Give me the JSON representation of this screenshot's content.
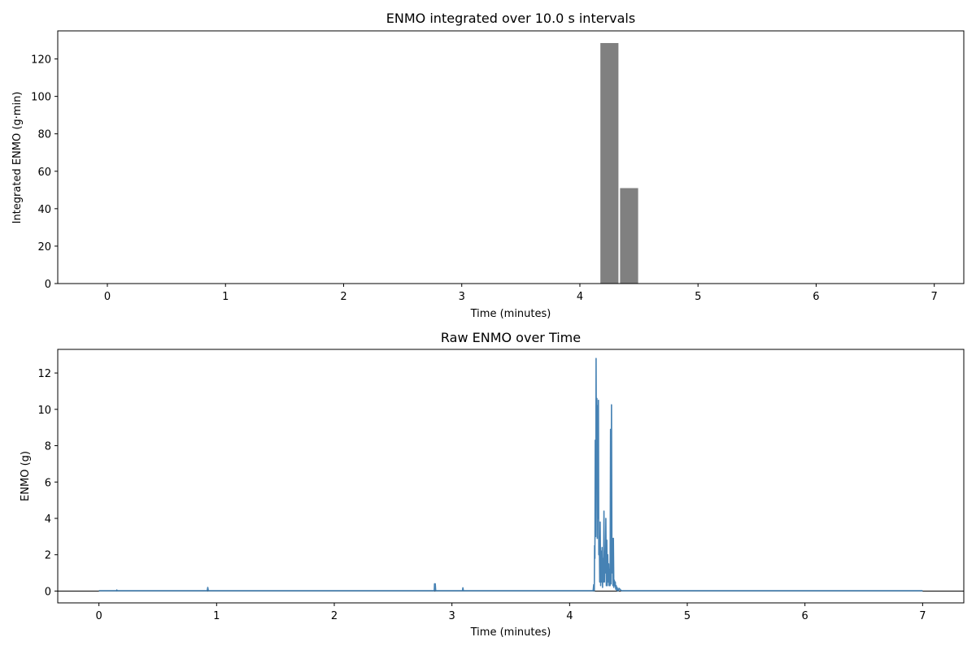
{
  "chart_data": [
    {
      "type": "bar",
      "title": "ENMO integrated over 10.0 s intervals",
      "xlabel": "Time (minutes)",
      "ylabel": "Integrated ENMO (g·min)",
      "xlim": [
        -0.42,
        7.25
      ],
      "ylim": [
        0,
        135
      ],
      "xticks": [
        0,
        1,
        2,
        3,
        4,
        5,
        6,
        7
      ],
      "yticks": [
        0,
        20,
        40,
        60,
        80,
        100,
        120
      ],
      "bar_color": "#808080",
      "grid": false,
      "bars": [
        {
          "x_start": 4.0,
          "x_end": 4.1667,
          "value": 0.1
        },
        {
          "x_start": 4.1667,
          "x_end": 4.3333,
          "value": 128.5
        },
        {
          "x_start": 4.3333,
          "x_end": 4.5,
          "value": 51.0
        },
        {
          "x_start": 4.5,
          "x_end": 4.6667,
          "value": 0.1
        }
      ]
    },
    {
      "type": "line",
      "title": "Raw ENMO over Time",
      "xlabel": "Time (minutes)",
      "ylabel": "ENMO (g)",
      "xlim": [
        -0.35,
        7.35
      ],
      "ylim": [
        -0.65,
        13.3
      ],
      "xticks": [
        0,
        1,
        2,
        3,
        4,
        5,
        6,
        7
      ],
      "yticks": [
        0,
        2,
        4,
        6,
        8,
        10,
        12
      ],
      "line_color": "#4682b4",
      "grid": false,
      "zero_line": true,
      "series": [
        {
          "x": [
            0,
            0.15,
            0.152,
            0.155,
            0.92,
            0.925,
            0.93,
            2.85,
            2.852,
            2.858,
            2.862,
            3.09,
            3.093,
            3.097,
            4.2,
            4.205,
            4.21,
            4.212,
            4.215,
            4.218,
            4.222,
            4.225,
            4.228,
            4.232,
            4.235,
            4.238,
            4.242,
            4.245,
            4.248,
            4.252,
            4.256,
            4.26,
            4.264,
            4.268,
            4.272,
            4.276,
            4.28,
            4.284,
            4.288,
            4.292,
            4.296,
            4.3,
            4.304,
            4.308,
            4.312,
            4.316,
            4.32,
            4.324,
            4.328,
            4.332,
            4.336,
            4.34,
            4.344,
            4.348,
            4.352,
            4.356,
            4.36,
            4.364,
            4.368,
            4.372,
            4.376,
            4.38,
            4.384,
            4.388,
            4.392,
            4.396,
            4.4,
            4.404,
            4.408,
            4.412,
            4.416,
            4.42,
            4.44,
            4.45,
            4.455,
            4.46,
            7.0
          ],
          "y": [
            0.02,
            0.02,
            0.06,
            0.02,
            0.02,
            0.2,
            0.02,
            0.02,
            0.4,
            0.4,
            0.02,
            0.02,
            0.18,
            0.02,
            0.02,
            0.35,
            0.02,
            2.5,
            1.8,
            8.3,
            3.0,
            12.8,
            6.0,
            10.6,
            2.9,
            10.2,
            4.0,
            10.5,
            2.0,
            3.0,
            0.5,
            3.8,
            0.3,
            2.2,
            0.5,
            2.4,
            0.2,
            1.8,
            0.5,
            4.4,
            0.5,
            2.2,
            1.0,
            4.0,
            0.3,
            2.8,
            0.3,
            2.0,
            0.5,
            1.5,
            0.3,
            1.2,
            0.3,
            8.9,
            0.4,
            10.25,
            1.0,
            2.9,
            0.3,
            2.9,
            0.2,
            0.6,
            0.3,
            0.5,
            0.1,
            0.3,
            0.05,
            0.2,
            0.02,
            0.1,
            0.02,
            0.15,
            0.02,
            0.02,
            0.02,
            0.02,
            0.02
          ]
        }
      ]
    }
  ]
}
